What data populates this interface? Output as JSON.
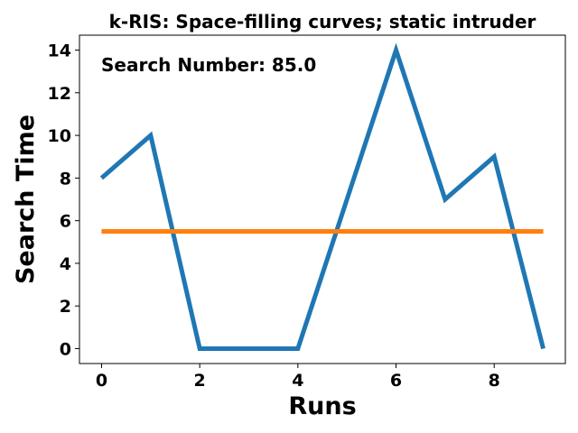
{
  "chart_data": {
    "type": "line",
    "title": "k-RIS: Space-filling curves; static intruder",
    "xlabel": "Runs",
    "ylabel": "Search Time",
    "annotation": "Search Number: 85.0",
    "x": [
      0,
      1,
      2,
      3,
      4,
      5,
      6,
      7,
      8,
      9
    ],
    "xlim": [
      -0.45,
      9.45
    ],
    "ylim": [
      -0.7,
      14.7
    ],
    "xticks": [
      0,
      2,
      4,
      6,
      8
    ],
    "yticks": [
      0,
      2,
      4,
      6,
      8,
      10,
      12,
      14
    ],
    "grid": false,
    "series": [
      {
        "values": [
          8,
          10,
          0,
          0,
          0,
          7,
          14,
          7,
          9,
          0
        ],
        "color": "#1f77b4"
      },
      {
        "values": [
          5.5,
          5.5,
          5.5,
          5.5,
          5.5,
          5.5,
          5.5,
          5.5,
          5.5,
          5.5
        ],
        "color": "#ff7f0e"
      }
    ]
  }
}
